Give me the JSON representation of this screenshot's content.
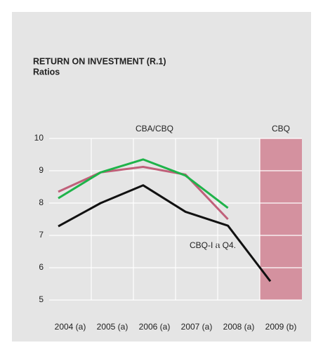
{
  "chart_data": {
    "type": "line",
    "title": "RETURN ON INVESTMENT (R.1)",
    "subtitle": "Ratios",
    "categories": [
      "2004 (a)",
      "2005 (a)",
      "2006 (a)",
      "2007 (a)",
      "2008 (a)",
      "2009 (b)"
    ],
    "series": [
      {
        "color": "#c0607a",
        "values": [
          8.35,
          8.95,
          9.12,
          8.88,
          7.5,
          null
        ]
      },
      {
        "color": "#1fb34a",
        "values": [
          8.15,
          8.95,
          9.35,
          8.85,
          7.85,
          null
        ]
      },
      {
        "name": "CBQ-I a Q4.",
        "color": "#111111",
        "values": [
          7.28,
          8.0,
          8.55,
          7.73,
          7.3,
          5.58
        ]
      }
    ],
    "annotations": [
      "CBA/CBQ",
      "CBQ"
    ],
    "ylim": [
      5,
      10
    ],
    "yticks": [
      5,
      6,
      7,
      8,
      9,
      10
    ],
    "grid": true
  }
}
